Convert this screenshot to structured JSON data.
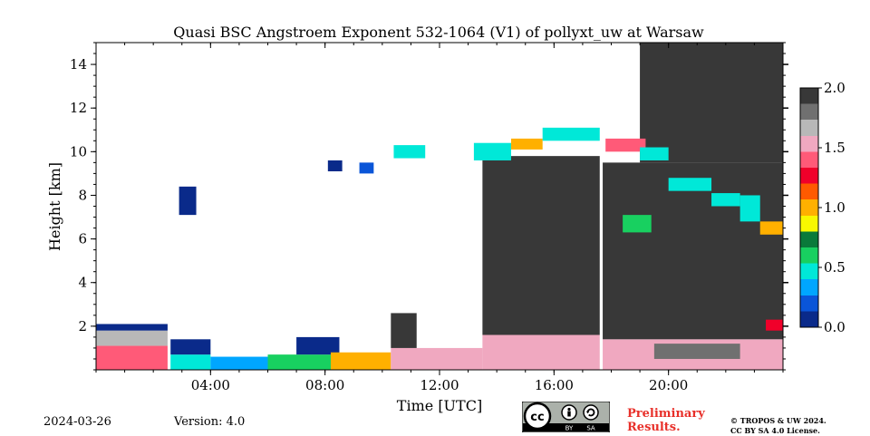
{
  "chart_data": {
    "type": "heatmap",
    "title": "Quasi BSC Angstroem Exponent 532-1064 (V1) of pollyxt_uw at Warsaw",
    "xlabel": "Time [UTC]",
    "ylabel": "Height [km]",
    "x_range_hours": [
      0,
      24
    ],
    "y_range_km": [
      0,
      15
    ],
    "x_ticks": [
      {
        "value": 4,
        "label": "04:00"
      },
      {
        "value": 8,
        "label": "08:00"
      },
      {
        "value": 12,
        "label": "12:00"
      },
      {
        "value": 16,
        "label": "16:00"
      },
      {
        "value": 20,
        "label": "20:00"
      }
    ],
    "y_ticks": [
      {
        "value": 2,
        "label": "2"
      },
      {
        "value": 4,
        "label": "4"
      },
      {
        "value": 6,
        "label": "6"
      },
      {
        "value": 8,
        "label": "8"
      },
      {
        "value": 10,
        "label": "10"
      },
      {
        "value": 12,
        "label": "12"
      },
      {
        "value": 14,
        "label": "14"
      }
    ],
    "colorbar": {
      "range": [
        0.0,
        2.0
      ],
      "ticks": [
        {
          "value": 0.0,
          "label": "0.0"
        },
        {
          "value": 0.5,
          "label": "0.5"
        },
        {
          "value": 1.0,
          "label": "1.0"
        },
        {
          "value": 1.5,
          "label": "1.5"
        },
        {
          "value": 2.0,
          "label": "2.0"
        }
      ],
      "colors": [
        "#0a2a8a",
        "#0a55d8",
        "#00a6ff",
        "#00e8d8",
        "#18d060",
        "#0a7a3a",
        "#f8f800",
        "#ffb000",
        "#ff5a00",
        "#f0002a",
        "#ff5a78",
        "#f0a8c0",
        "#b8b8b8",
        "#707070",
        "#383838"
      ]
    },
    "missing_data_gaps_hours": [
      [
        2.5,
        2.6
      ],
      [
        17.6,
        17.7
      ]
    ],
    "features": [
      {
        "t0": 0.0,
        "t1": 2.5,
        "h0": 0.0,
        "h1": 1.1,
        "ae": 1.35
      },
      {
        "t0": 0.0,
        "t1": 2.5,
        "h0": 1.1,
        "h1": 1.8,
        "ae": 1.6
      },
      {
        "t0": 0.0,
        "t1": 2.5,
        "h0": 1.8,
        "h1": 2.1,
        "ae": 0.1
      },
      {
        "t0": 2.6,
        "t1": 4.0,
        "h0": 0.0,
        "h1": 0.7,
        "ae": 0.4
      },
      {
        "t0": 2.6,
        "t1": 4.0,
        "h0": 0.7,
        "h1": 1.4,
        "ae": 0.1
      },
      {
        "t0": 4.0,
        "t1": 6.0,
        "h0": 0.0,
        "h1": 0.6,
        "ae": 0.35
      },
      {
        "t0": 6.0,
        "t1": 8.2,
        "h0": 0.0,
        "h1": 0.7,
        "ae": 0.55
      },
      {
        "t0": 7.0,
        "t1": 8.5,
        "h0": 0.7,
        "h1": 1.5,
        "ae": 0.1
      },
      {
        "t0": 8.2,
        "t1": 10.3,
        "h0": 0.0,
        "h1": 0.8,
        "ae": 1.05
      },
      {
        "t0": 10.3,
        "t1": 13.5,
        "h0": 0.0,
        "h1": 1.0,
        "ae": 1.5
      },
      {
        "t0": 13.5,
        "t1": 17.6,
        "h0": 0.0,
        "h1": 1.6,
        "ae": 1.5
      },
      {
        "t0": 17.7,
        "t1": 24.0,
        "h0": 0.0,
        "h1": 1.4,
        "ae": 1.5
      },
      {
        "t0": 19.5,
        "t1": 22.5,
        "h0": 0.5,
        "h1": 1.2,
        "ae": 1.85
      },
      {
        "t0": 10.3,
        "t1": 11.2,
        "h0": 1.0,
        "h1": 2.6,
        "ae": 1.95
      },
      {
        "t0": 13.5,
        "t1": 17.6,
        "h0": 1.6,
        "h1": 9.8,
        "ae": 1.95
      },
      {
        "t0": 17.7,
        "t1": 24.0,
        "h0": 1.4,
        "h1": 9.5,
        "ae": 1.95
      },
      {
        "t0": 19.0,
        "t1": 24.0,
        "h0": 9.5,
        "h1": 15.0,
        "ae": 1.95
      },
      {
        "t0": 2.9,
        "t1": 3.5,
        "h0": 7.1,
        "h1": 8.4,
        "ae": 0.05
      },
      {
        "t0": 8.1,
        "t1": 8.6,
        "h0": 9.1,
        "h1": 9.6,
        "ae": 0.1
      },
      {
        "t0": 9.2,
        "t1": 9.7,
        "h0": 9.0,
        "h1": 9.5,
        "ae": 0.15
      },
      {
        "t0": 10.4,
        "t1": 11.5,
        "h0": 9.7,
        "h1": 10.3,
        "ae": 0.4
      },
      {
        "t0": 13.2,
        "t1": 14.5,
        "h0": 9.6,
        "h1": 10.4,
        "ae": 0.4
      },
      {
        "t0": 14.5,
        "t1": 15.6,
        "h0": 10.1,
        "h1": 10.6,
        "ae": 1.05
      },
      {
        "t0": 15.6,
        "t1": 17.6,
        "h0": 10.5,
        "h1": 11.1,
        "ae": 0.45
      },
      {
        "t0": 17.8,
        "t1": 19.2,
        "h0": 10.0,
        "h1": 10.6,
        "ae": 1.35
      },
      {
        "t0": 19.0,
        "t1": 20.0,
        "h0": 9.6,
        "h1": 10.2,
        "ae": 0.4
      },
      {
        "t0": 20.0,
        "t1": 21.5,
        "h0": 8.2,
        "h1": 8.8,
        "ae": 0.5
      },
      {
        "t0": 21.5,
        "t1": 22.5,
        "h0": 7.5,
        "h1": 8.1,
        "ae": 0.5
      },
      {
        "t0": 22.5,
        "t1": 23.2,
        "h0": 6.8,
        "h1": 8.0,
        "ae": 0.45
      },
      {
        "t0": 23.2,
        "t1": 24.0,
        "h0": 6.2,
        "h1": 6.8,
        "ae": 1.05
      },
      {
        "t0": 18.4,
        "t1": 19.4,
        "h0": 6.3,
        "h1": 7.1,
        "ae": 0.6
      },
      {
        "t0": 23.4,
        "t1": 24.0,
        "h0": 1.8,
        "h1": 2.3,
        "ae": 1.3
      }
    ]
  },
  "footer": {
    "date": "2024-03-26",
    "version": "Version: 4.0",
    "preliminary_line1": "Preliminary",
    "preliminary_line2": "Results.",
    "copyright_line1": "© TROPOS & UW 2024.",
    "copyright_line2": "CC BY SA 4.0 License.",
    "badge_by": "BY",
    "badge_sa": "SA"
  },
  "colors": {
    "preliminary": "#e8302a",
    "badge_bg": "#abb1aa"
  }
}
